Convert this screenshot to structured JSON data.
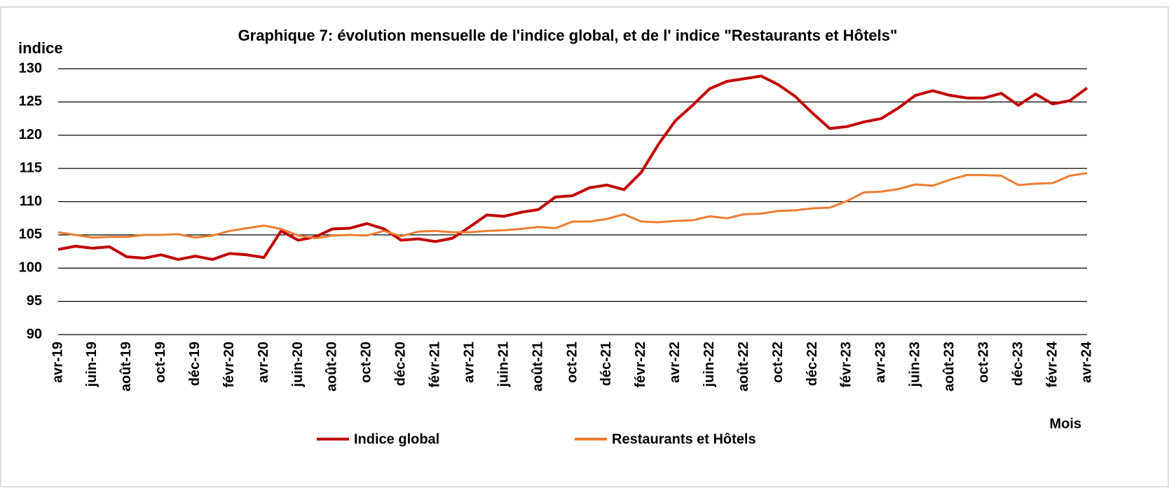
{
  "chart_data": {
    "type": "line",
    "title": "Graphique 7: évolution mensuelle de l'indice global, et de l' indice \"Restaurants et Hôtels\"",
    "y_label": "indice",
    "x_label": "Mois",
    "categories": [
      "avr-19",
      null,
      "juin-19",
      null,
      "août-19",
      null,
      "oct-19",
      null,
      "déc-19",
      null,
      "févr-20",
      null,
      "avr-20",
      null,
      "juin-20",
      null,
      "août-20",
      null,
      "oct-20",
      null,
      "déc-20",
      null,
      "févr-21",
      null,
      "avr-21",
      null,
      "juin-21",
      null,
      "août-21",
      null,
      "oct-21",
      null,
      "déc-21",
      null,
      "févr-22",
      null,
      "avr-22",
      null,
      "juin-22",
      null,
      "août-22",
      null,
      "oct-22",
      null,
      "déc-22",
      null,
      "févr-23",
      null,
      "avr-23",
      null,
      "juin-23",
      null,
      "août-23",
      null,
      "oct-23",
      null,
      "déc-23",
      null,
      "févr-24",
      null,
      "avr-24"
    ],
    "series": [
      {
        "name": "Indice global",
        "color": "#c00000",
        "values": [
          102.8,
          103.3,
          103.0,
          103.2,
          101.7,
          101.5,
          102.0,
          101.3,
          101.8,
          101.3,
          102.2,
          102.0,
          101.6,
          105.6,
          104.2,
          104.7,
          105.9,
          106.0,
          106.7,
          105.9,
          104.2,
          104.4,
          104.0,
          104.5,
          106.2,
          108.0,
          107.8,
          108.4,
          108.8,
          110.7,
          110.9,
          112.1,
          112.5,
          111.8,
          114.4,
          118.6,
          122.2,
          124.5,
          127.0,
          128.1,
          128.5,
          128.9,
          127.6,
          125.8,
          123.3,
          121.0,
          121.3,
          122.0,
          122.5,
          124.1,
          126.0,
          126.7,
          126.0,
          125.6,
          125.6,
          126.3,
          124.5,
          126.2,
          124.7,
          125.2,
          127.1
        ]
      },
      {
        "name": "Restaurants et Hôtels",
        "color": "#ed7d31",
        "values": [
          105.4,
          105.0,
          104.6,
          104.7,
          104.7,
          105.0,
          105.0,
          105.1,
          104.6,
          104.9,
          105.6,
          106.0,
          106.4,
          105.9,
          104.9,
          104.5,
          104.9,
          105.0,
          104.9,
          105.6,
          104.8,
          105.5,
          105.6,
          105.4,
          105.4,
          105.6,
          105.7,
          105.9,
          106.2,
          106.0,
          107.0,
          107.0,
          107.4,
          108.1,
          107.0,
          106.9,
          107.1,
          107.2,
          107.8,
          107.5,
          108.1,
          108.2,
          108.6,
          108.7,
          109.0,
          109.1,
          110.1,
          111.4,
          111.5,
          111.9,
          112.6,
          112.4,
          113.3,
          114.0,
          114.0,
          113.9,
          112.5,
          112.7,
          112.8,
          113.9,
          114.3
        ]
      }
    ],
    "ylim": [
      90,
      130
    ],
    "yticks": [
      90,
      95,
      100,
      105,
      110,
      115,
      120,
      125,
      130
    ],
    "grid": true
  }
}
